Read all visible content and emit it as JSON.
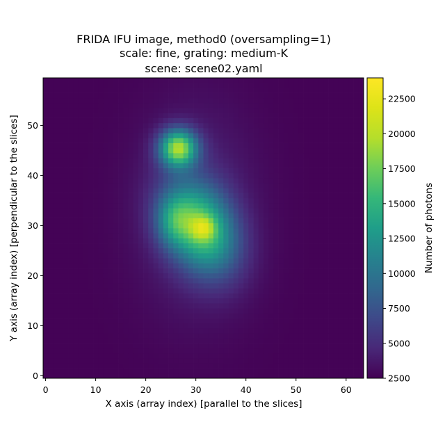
{
  "chart_data": {
    "type": "heatmap",
    "title_lines": [
      "FRIDA IFU image, method0 (oversampling=1)",
      "scale: fine, grating: medium-K",
      "scene: scene02.yaml"
    ],
    "xlabel": "X axis (array index)  [parallel to the slices]",
    "ylabel": "Y axis (array index)  [perpendicular to the slices]",
    "xlim": [
      -0.5,
      63.5
    ],
    "ylim": [
      -0.5,
      59.5
    ],
    "xticks": [
      0,
      10,
      20,
      30,
      40,
      50,
      60
    ],
    "yticks": [
      0,
      10,
      20,
      30,
      40,
      50
    ],
    "grid_size": [
      64,
      60
    ],
    "colormap": "viridis",
    "colorbar": {
      "label": "Number of photons",
      "range": [
        2500,
        24000
      ],
      "ticks": [
        2500,
        5000,
        7500,
        10000,
        12500,
        15000,
        17500,
        20000,
        22500
      ]
    },
    "background_value": 2600,
    "sources": [
      {
        "shape": "elliptical gaussian",
        "peak_xy": [
          31,
          29.5
        ],
        "sigma_x": 4.5,
        "sigma_y": 6.5,
        "peak_value": 13000,
        "rotation_deg": 25
      },
      {
        "shape": "gaussian",
        "peak_xy": [
          26.5,
          45.5
        ],
        "sigma_x": 2.6,
        "sigma_y": 2.6,
        "peak_value": 15500
      },
      {
        "shape": "gaussian",
        "peak_xy": [
          25.5,
          31
        ],
        "sigma_x": 2.5,
        "sigma_y": 3.5,
        "peak_value": 5000
      },
      {
        "shape": "gaussian",
        "peak_xy": [
          31.5,
          29.5
        ],
        "sigma_x": 1.6,
        "sigma_y": 1.6,
        "peak_value": 5000
      },
      {
        "shape": "halo",
        "peak_xy": [
          30,
          33
        ],
        "sigma_x": 8,
        "sigma_y": 14,
        "peak_value": 2200
      }
    ]
  }
}
